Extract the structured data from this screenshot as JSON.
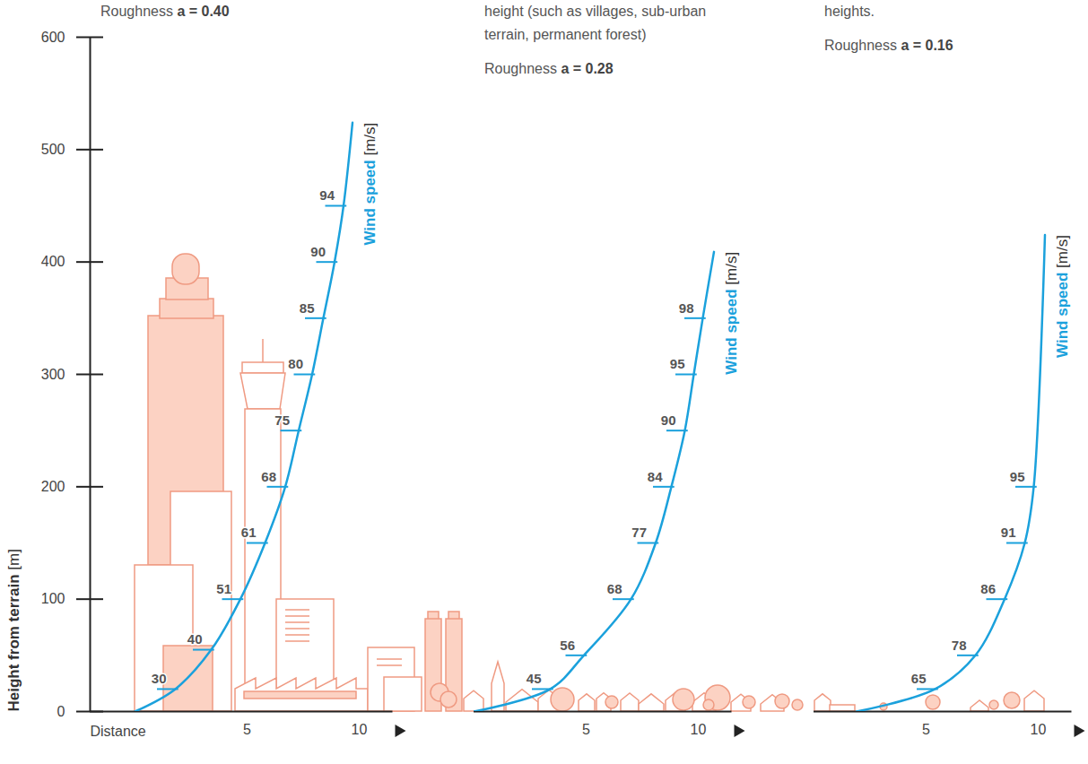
{
  "chart_data": [
    {
      "type": "line",
      "subtitle": "Roughness a = 0.40",
      "xlabel": "Distance",
      "ylabel": "Height from terrain [m]",
      "xlim": [
        -2,
        11.5
      ],
      "xticks": [
        5,
        10
      ],
      "ylim": [
        0,
        600
      ],
      "yticks": [
        0,
        100,
        200,
        300,
        400,
        500,
        600
      ],
      "series": [
        {
          "name": "Wind speed [m/s]",
          "color": "#1ba1dc",
          "x": [
            0,
            1.8,
            3.4,
            4.7,
            5.8,
            6.7,
            7.3,
            7.9,
            8.4,
            8.9,
            9.3,
            9.7
          ],
          "values": [
            0,
            20,
            55,
            100,
            150,
            200,
            250,
            300,
            350,
            400,
            450,
            524
          ],
          "wind_speed": [
            null,
            30,
            40,
            51,
            61,
            68,
            75,
            80,
            85,
            90,
            94,
            null
          ]
        }
      ]
    },
    {
      "type": "line",
      "title": "height (such as villages, sub-urban terrain, permanent forest)",
      "subtitle": "Roughness a = 0.28",
      "xlim": [
        0,
        11.5
      ],
      "xticks": [
        5,
        10
      ],
      "ylim": [
        0,
        600
      ],
      "tick_labels": "x",
      "series": [
        {
          "name": "Wind speed [m/s]",
          "color": "#1ba1dc",
          "x": [
            0,
            3.4,
            4.9,
            7.0,
            8.1,
            8.8,
            9.4,
            9.8,
            10.2,
            10.7
          ],
          "values": [
            0,
            20,
            50,
            100,
            150,
            200,
            250,
            300,
            350,
            409
          ],
          "wind_speed": [
            null,
            45,
            56,
            68,
            77,
            84,
            90,
            95,
            98,
            null
          ]
        }
      ]
    },
    {
      "type": "line",
      "title": "heights.",
      "subtitle": "Roughness a = 0.16",
      "xlim": [
        0,
        11.5
      ],
      "xticks": [
        5,
        10
      ],
      "ylim": [
        0,
        600
      ],
      "tick_labels": "x",
      "series": [
        {
          "name": "Wind speed [m/s]",
          "color": "#1ba1dc",
          "x": [
            1.9,
            5.4,
            7.2,
            8.5,
            9.4,
            9.8,
            10.3
          ],
          "values": [
            0,
            20,
            50,
            100,
            150,
            200,
            424
          ],
          "wind_speed": [
            null,
            65,
            78,
            86,
            91,
            95,
            null
          ]
        }
      ]
    }
  ]
}
